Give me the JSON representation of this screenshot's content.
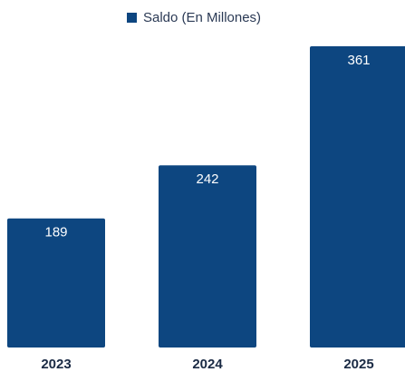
{
  "chart_data": {
    "type": "bar",
    "categories": [
      "2023",
      "2024",
      "2025"
    ],
    "series": [
      {
        "name": "Saldo (En Millones)",
        "color": "#0d4680",
        "values": [
          189,
          242,
          361
        ]
      }
    ],
    "ylim": [
      60,
      380
    ],
    "legend": "top"
  }
}
